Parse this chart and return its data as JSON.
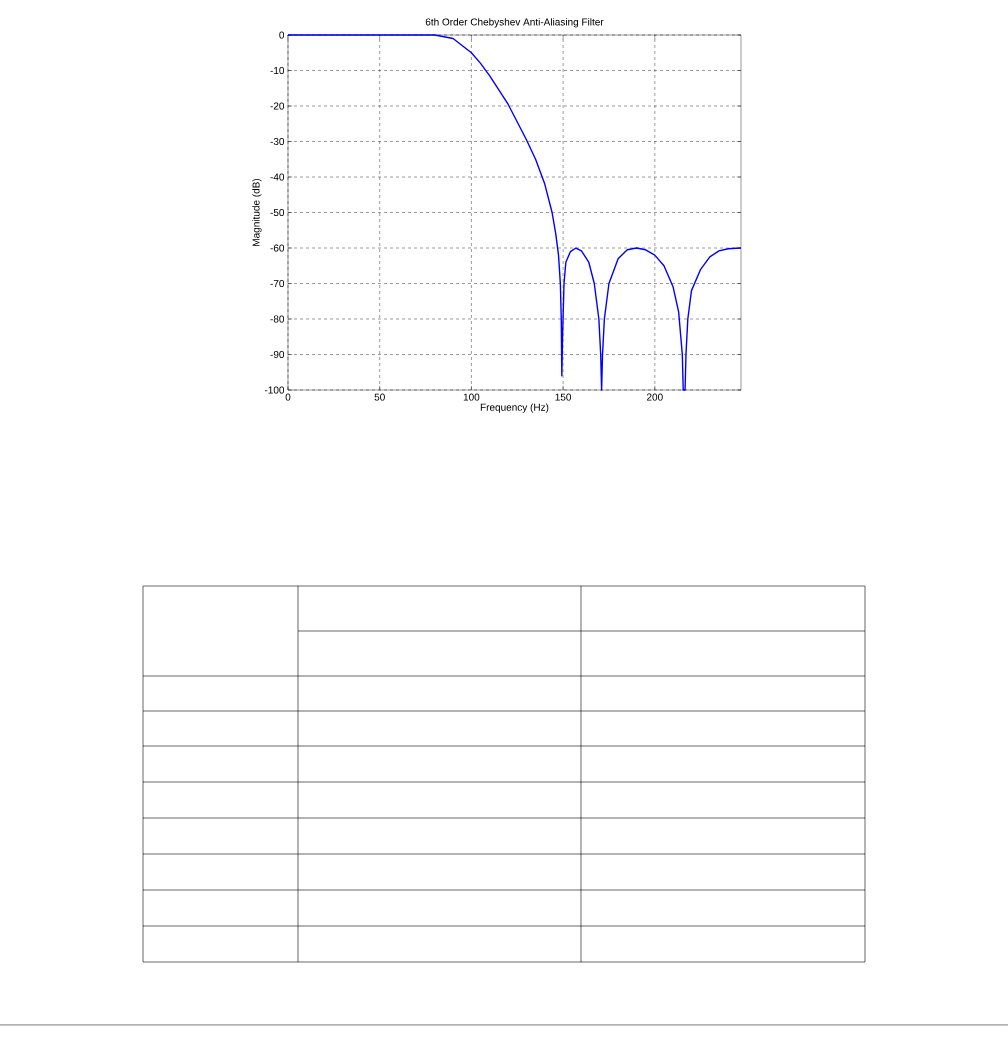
{
  "chart_data": {
    "type": "line",
    "title": "6th Order Chebyshev Anti-Aliasing Filter",
    "xlabel": "Frequency (Hz)",
    "ylabel": "Magnitude (dB)",
    "x": [
      0,
      80,
      90,
      100,
      105,
      110,
      120,
      130,
      135,
      140,
      144,
      146,
      147.5,
      148.5,
      149,
      149.3,
      149.7,
      150.5,
      151.5,
      154,
      157,
      160,
      164,
      167,
      169.5,
      170.5,
      171,
      171.5,
      172.5,
      175,
      180,
      185,
      190,
      195,
      200,
      205,
      210,
      213,
      215,
      215.5,
      216.5,
      217,
      218,
      220,
      225,
      230,
      235,
      240,
      247
    ],
    "series": [
      {
        "color": "#0000ff",
        "values": [
          0,
          0,
          -1,
          -5,
          -8,
          -11.5,
          -19.5,
          -29.5,
          -35,
          -42,
          -50,
          -56,
          -62,
          -70,
          -80,
          -96,
          -85,
          -70,
          -64,
          -61,
          -60,
          -60.8,
          -64,
          -70,
          -80,
          -90,
          -100,
          -90,
          -80,
          -70,
          -63,
          -60.5,
          -60,
          -60.5,
          -62,
          -65,
          -71,
          -78,
          -90,
          -100,
          -100,
          -90,
          -80,
          -72,
          -66,
          -62.5,
          -60.8,
          -60.2,
          -60
        ]
      }
    ],
    "xlim": [
      0,
      247
    ],
    "ylim": [
      -100,
      0
    ],
    "xticks": [
      0,
      50,
      100,
      150,
      200
    ],
    "yticks": [
      0,
      -10,
      -20,
      -30,
      -40,
      -50,
      -60,
      -70,
      -80,
      -90,
      -100
    ],
    "grid": true
  }
}
